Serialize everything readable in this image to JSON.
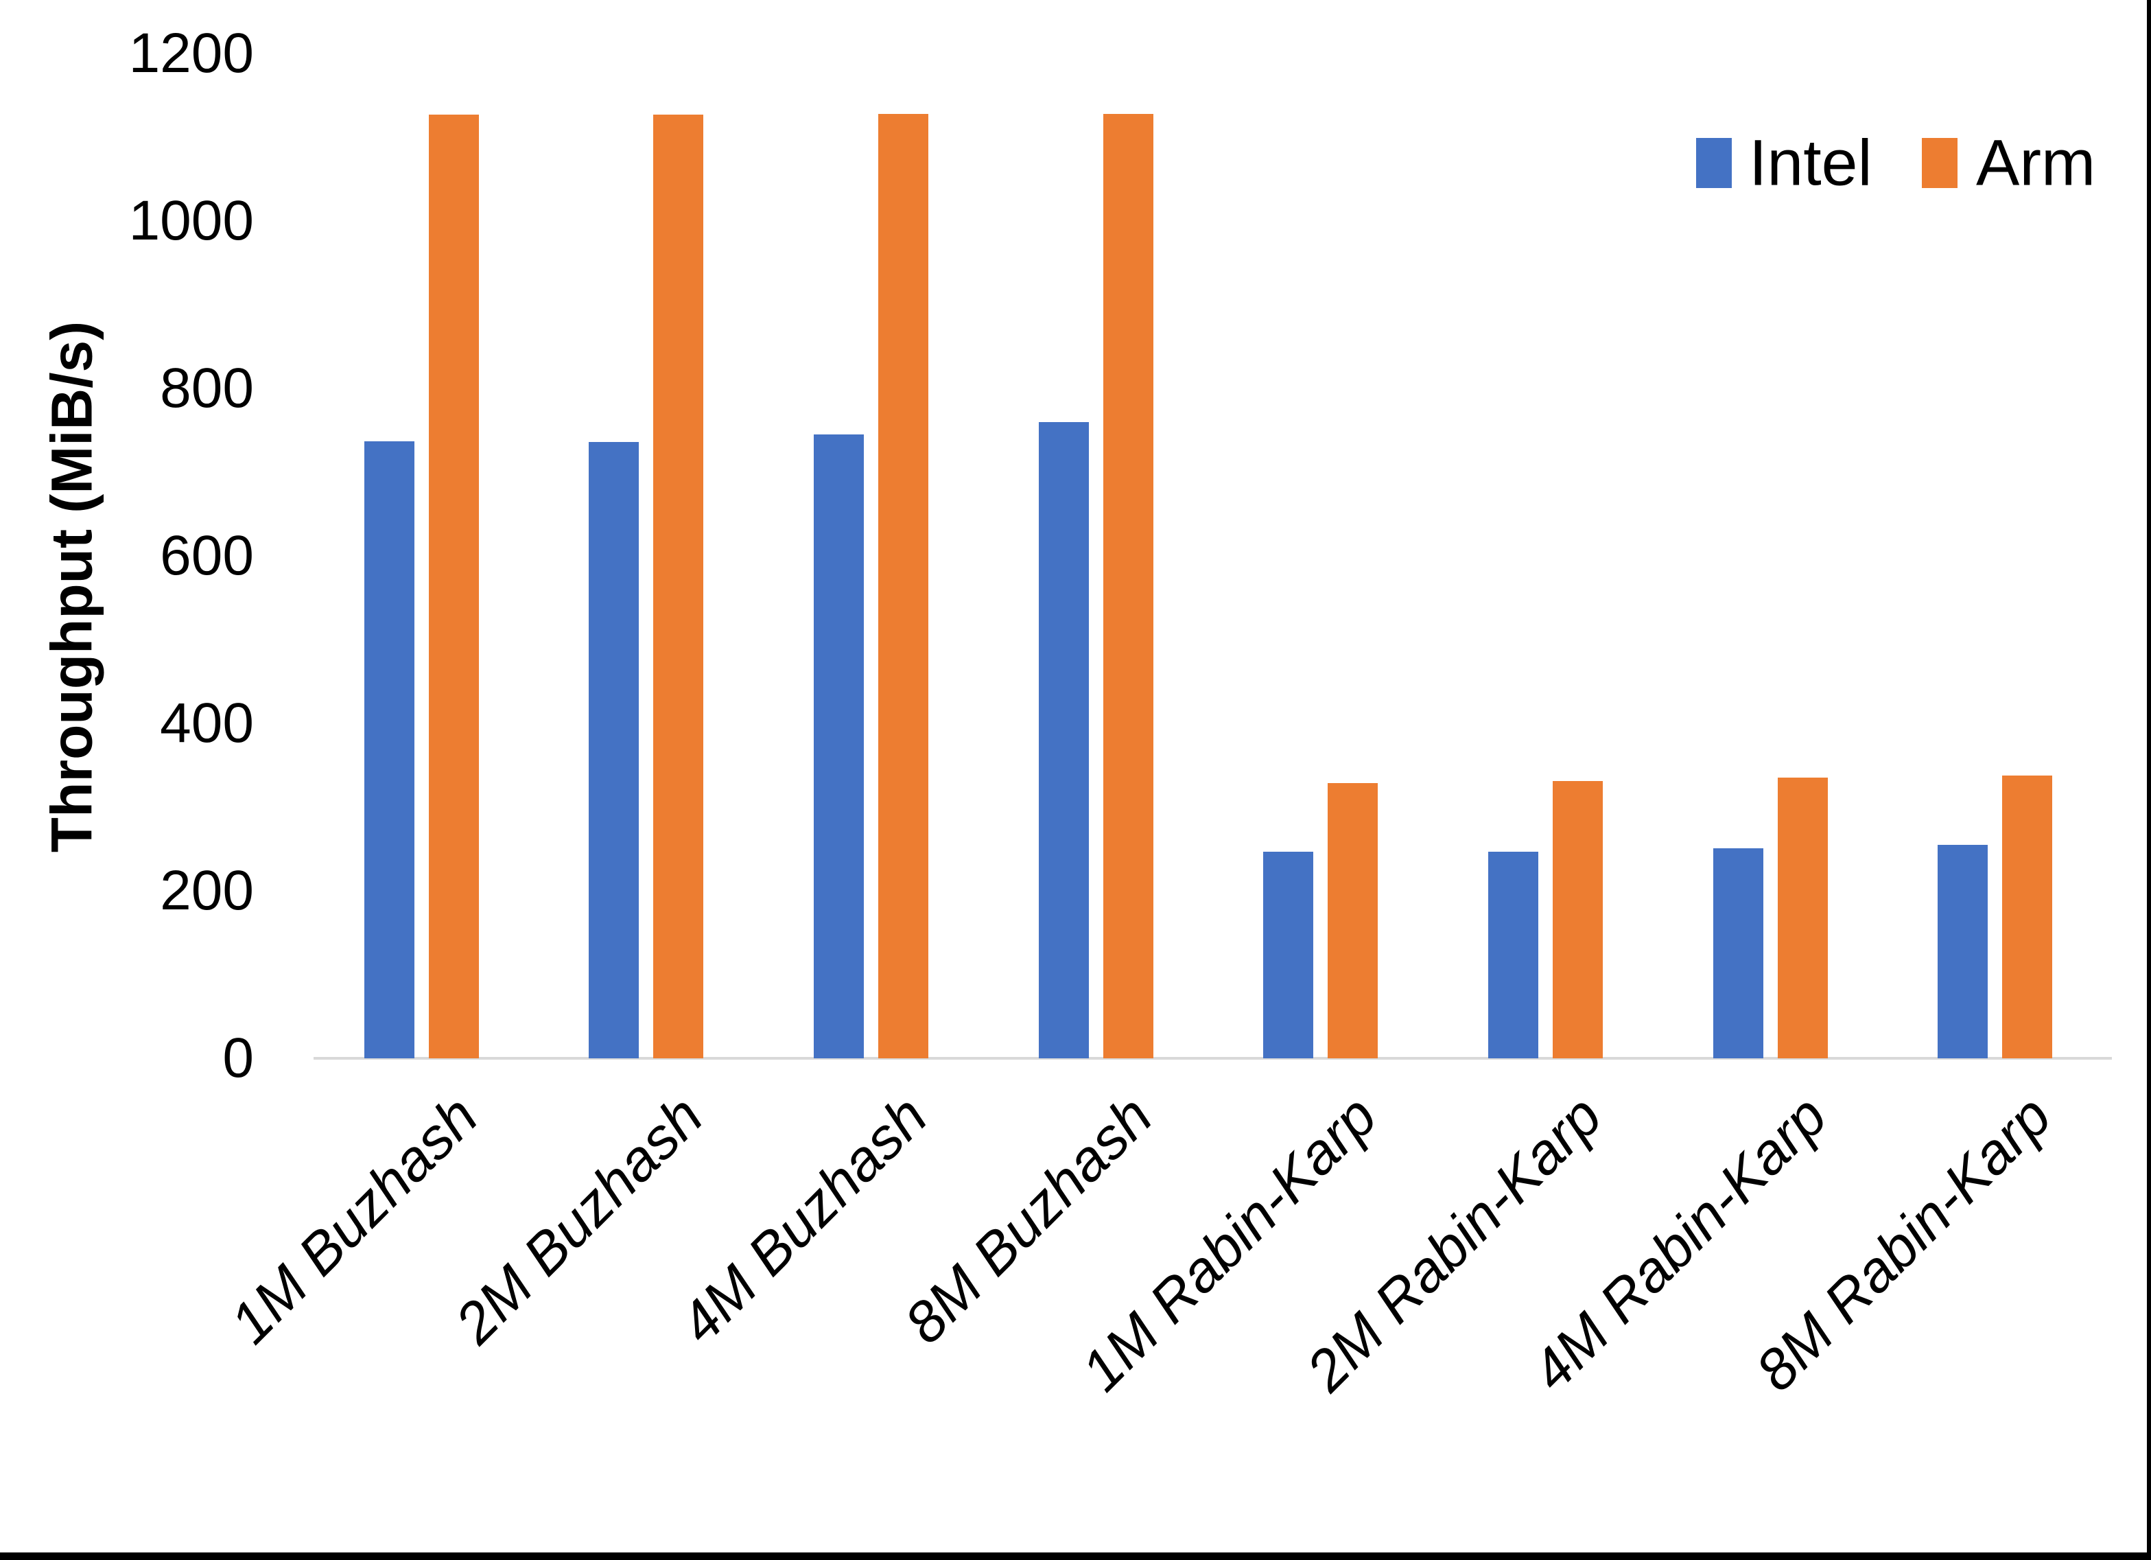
{
  "chart_data": {
    "type": "bar",
    "title": "",
    "ylabel": "Throughput (MiB/s)",
    "xlabel": "",
    "ylim": [
      0,
      1200
    ],
    "yticks": [
      0,
      200,
      400,
      600,
      800,
      1000,
      1200
    ],
    "grid": false,
    "legend_position": "top-right",
    "categories": [
      "1M Buzhash",
      "2M Buzhash",
      "4M Buzhash",
      "8M Buzhash",
      "1M Rabin-Karp",
      "2M Rabin-Karp",
      "4M Rabin-Karp",
      "8M Rabin-Karp"
    ],
    "series": [
      {
        "name": "Intel",
        "color": "#4472C4",
        "values": [
          737,
          736,
          745,
          760,
          247,
          247,
          251,
          255
        ]
      },
      {
        "name": "Arm",
        "color": "#ED7D31",
        "values": [
          1127,
          1127,
          1128,
          1128,
          329,
          331,
          335,
          338
        ]
      }
    ]
  },
  "colors": {
    "intel": "#4472C4",
    "arm": "#ED7D31",
    "axis_line": "#d9d9d9",
    "border": "#000000"
  }
}
